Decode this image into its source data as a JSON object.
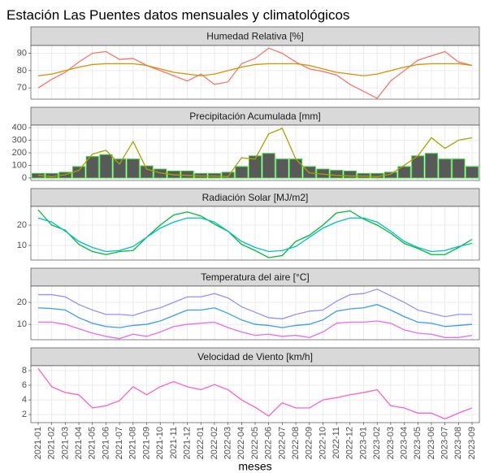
{
  "title": "Estación Las Puentes datos mensuales y climatológicos",
  "x_label": "meses",
  "categories": [
    "2021-01",
    "2021-02",
    "2021-03",
    "2021-04",
    "2021-05",
    "2021-06",
    "2021-07",
    "2021-08",
    "2021-09",
    "2021-10",
    "2021-11",
    "2021-12",
    "2022-01",
    "2022-02",
    "2022-03",
    "2022-04",
    "2022-05",
    "2022-06",
    "2022-07",
    "2022-08",
    "2022-09",
    "2022-10",
    "2022-11",
    "2022-12",
    "2023-01",
    "2023-02",
    "2023-03",
    "2023-04",
    "2023-05",
    "2023-06",
    "2023-07",
    "2023-08",
    "2023-09"
  ],
  "chart_data": [
    {
      "type": "line",
      "title": "Humedad Relativa [%]",
      "ylim": [
        63.5,
        94.5
      ],
      "yticks": [
        70,
        80,
        90
      ],
      "grid": true,
      "series": [
        {
          "color": "#f8766d",
          "values": [
            70,
            75,
            79,
            85,
            90,
            91,
            86.5,
            87,
            83,
            80,
            77,
            74,
            78,
            72,
            73.5,
            84,
            87,
            93,
            90,
            85,
            81,
            79.5,
            77.5,
            72,
            68,
            64,
            74,
            80,
            86,
            88.5,
            91,
            85,
            83
          ]
        },
        {
          "color": "#d39200",
          "values": [
            77,
            78,
            80,
            82,
            83.5,
            84,
            84,
            84,
            83,
            81,
            79,
            78,
            77,
            78,
            80,
            82,
            83.5,
            84,
            84,
            84,
            83,
            81,
            79,
            78,
            77,
            78,
            80,
            82,
            83.5,
            84,
            84,
            84,
            83
          ]
        }
      ]
    },
    {
      "type": "line",
      "title": "Precipitación Acumulada [mm]",
      "ylim": [
        -20,
        420
      ],
      "yticks": [
        0,
        100,
        200,
        300,
        400
      ],
      "grid": true,
      "series": [
        {
          "type": "bar",
          "color": "#595959",
          "stroke": "#33cc33",
          "values": [
            35,
            35,
            45,
            90,
            170,
            185,
            150,
            150,
            95,
            70,
            55,
            55,
            35,
            35,
            45,
            90,
            175,
            195,
            150,
            150,
            90,
            70,
            60,
            55,
            35,
            35,
            45,
            90,
            175,
            195,
            150,
            150,
            90
          ]
        },
        {
          "color": "#a3a500",
          "values": [
            20,
            10,
            25,
            60,
            190,
            220,
            110,
            290,
            70,
            40,
            25,
            20,
            15,
            15,
            10,
            160,
            150,
            350,
            395,
            150,
            40,
            30,
            20,
            15,
            15,
            10,
            30,
            100,
            175,
            320,
            235,
            300,
            320
          ]
        }
      ]
    },
    {
      "type": "line",
      "title": "Radiación Solar [MJ/m2]",
      "ylim": [
        2.8,
        29.2
      ],
      "yticks": [
        10,
        20
      ],
      "grid": true,
      "series": [
        {
          "color": "#00ba38",
          "values": [
            27.5,
            20,
            17.5,
            10.5,
            7,
            5.5,
            7,
            7.5,
            14,
            20,
            25,
            26.5,
            24.5,
            20.5,
            17,
            10.5,
            7.5,
            4,
            5,
            12,
            15,
            20,
            26,
            27,
            23,
            20,
            16,
            11,
            8.5,
            5.5,
            5.5,
            9,
            13
          ]
        },
        {
          "color": "#00bfc4",
          "values": [
            23.5,
            21.5,
            17,
            12,
            9,
            7,
            7.5,
            9.5,
            14,
            18.5,
            21.5,
            23.5,
            23.5,
            21.5,
            17,
            12,
            9,
            7,
            7.5,
            9.5,
            14,
            18.5,
            21.5,
            23.5,
            23.5,
            21.5,
            17,
            12,
            9,
            7,
            7.5,
            9.5,
            11
          ]
        }
      ]
    },
    {
      "type": "line",
      "title": "Temperatura del aire [°C]",
      "ylim": [
        3.0,
        27.4
      ],
      "yticks": [
        10,
        20
      ],
      "grid": true,
      "series": [
        {
          "color": "#9590ff",
          "values": [
            23.5,
            23.5,
            22.5,
            19,
            16.5,
            14.5,
            14.5,
            14,
            16,
            17.5,
            20,
            22.5,
            22.5,
            24,
            22,
            18,
            15.5,
            13,
            12.5,
            14.5,
            16,
            16.5,
            20.5,
            23.5,
            24,
            26,
            23,
            20,
            16.5,
            15,
            13.5,
            14.5,
            14.5
          ]
        },
        {
          "color": "#3a9cf0",
          "values": [
            17.5,
            17.2,
            16.5,
            13,
            10.5,
            9,
            8.5,
            9.5,
            10,
            11.5,
            14,
            16.5,
            16.5,
            17.5,
            15,
            12,
            10,
            9.5,
            8.5,
            9.5,
            10,
            12,
            16,
            17,
            17.5,
            19,
            16.5,
            13.5,
            11,
            10.5,
            9,
            9.5,
            10
          ]
        },
        {
          "color": "#e76bf3",
          "values": [
            11,
            11,
            10,
            8,
            6,
            4.5,
            3.5,
            5.5,
            4.5,
            6.5,
            9,
            10,
            10.5,
            11,
            8.5,
            6.5,
            5,
            5.5,
            4.5,
            5,
            4,
            6.5,
            10.5,
            11,
            11,
            11.5,
            10.5,
            7.5,
            6,
            5.5,
            4,
            4,
            5
          ]
        }
      ]
    },
    {
      "type": "line",
      "title": "Velocidad de Viento [km/h]",
      "ylim": [
        0.9,
        8.67
      ],
      "yticks": [
        2,
        4,
        6,
        8
      ],
      "grid": true,
      "series": [
        {
          "color": "#ff61c3",
          "values": [
            8.3,
            5.8,
            5,
            4.7,
            2.9,
            3.2,
            3.9,
            5.8,
            4.7,
            5.8,
            6.5,
            5.8,
            5.4,
            6.1,
            5.4,
            4,
            3,
            1.8,
            3.6,
            2.9,
            2.9,
            4,
            4.3,
            4.7,
            5,
            5.4,
            3.2,
            2.9,
            2.2,
            2.2,
            1.4,
            2.2,
            2.9
          ]
        }
      ]
    }
  ]
}
